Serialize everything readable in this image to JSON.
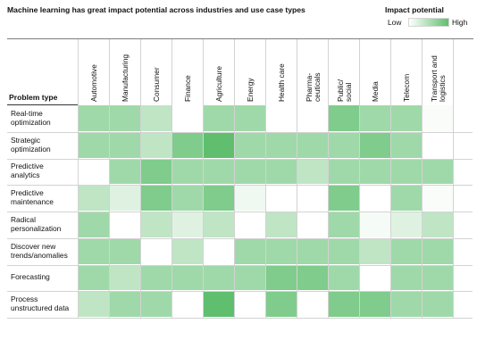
{
  "title": "Machine learning has great impact potential across industries and use case types",
  "legend": {
    "title": "Impact potential",
    "low": "Low",
    "high": "High",
    "low_color": "#ffffff",
    "high_color": "#5fbf6f"
  },
  "chart_data": {
    "type": "heatmap",
    "title": "Machine learning has great impact potential across industries and use case types",
    "row_header": "Problem type",
    "columns": [
      [
        "Automotive"
      ],
      [
        "Manufacturing"
      ],
      [
        "Consumer"
      ],
      [
        "Finance"
      ],
      [
        "Agriculture"
      ],
      [
        "Energy"
      ],
      [
        "Health care"
      ],
      [
        "Pharma-",
        "ceuticals"
      ],
      [
        "Public/",
        "social"
      ],
      [
        "Media"
      ],
      [
        "Telecom"
      ],
      [
        "Transport and",
        "logistics"
      ]
    ],
    "rows": [
      [
        "Real-time",
        "optimization"
      ],
      [
        "Strategic",
        "optimization"
      ],
      [
        "Predictive",
        "analytics"
      ],
      [
        "Predictive",
        "maintenance"
      ],
      [
        "Radical",
        "personalization"
      ],
      [
        "Discover new",
        "trends/anomalies"
      ],
      [
        "Forecasting"
      ],
      [
        "Process",
        "unstructured data"
      ]
    ],
    "values": [
      [
        3,
        3,
        2,
        0,
        3,
        3,
        0,
        0,
        4,
        3,
        3,
        0.2
      ],
      [
        3,
        3,
        2,
        4,
        5,
        3,
        3,
        3,
        3,
        4,
        3,
        0
      ],
      [
        0,
        3,
        4,
        3,
        3,
        3,
        3,
        2,
        3,
        3,
        3,
        3
      ],
      [
        2,
        1,
        4,
        3,
        4,
        0.5,
        0,
        0,
        4,
        0,
        3,
        0.2
      ],
      [
        3,
        0,
        2,
        1,
        2,
        0,
        2,
        0,
        3,
        0.3,
        1,
        2
      ],
      [
        3,
        3,
        0,
        2,
        0,
        3,
        3,
        3,
        3,
        2,
        3,
        3
      ],
      [
        3,
        2,
        3,
        3,
        3,
        3,
        4,
        4,
        3,
        0,
        3,
        3
      ],
      [
        2,
        3,
        3,
        0,
        5,
        0,
        4,
        0,
        4,
        4,
        3,
        3
      ]
    ],
    "value_range": [
      0,
      5
    ],
    "legend_position": "top-right"
  }
}
